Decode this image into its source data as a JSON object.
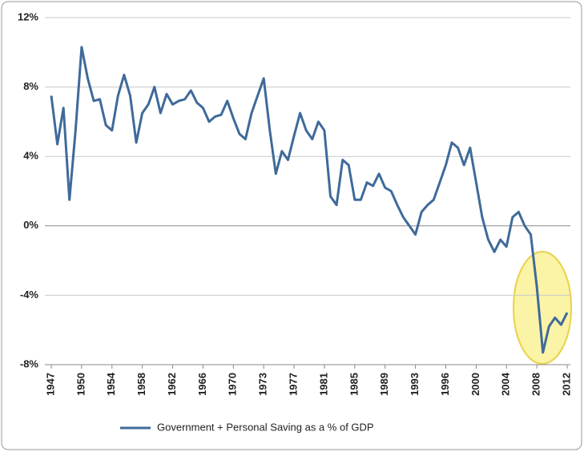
{
  "chart_data": {
    "type": "line",
    "categories": [
      "1947",
      null,
      null,
      null,
      null,
      "1950",
      null,
      null,
      null,
      null,
      "1954",
      null,
      null,
      null,
      null,
      "1958",
      null,
      null,
      null,
      null,
      "1962",
      null,
      null,
      null,
      null,
      "1966",
      null,
      null,
      null,
      null,
      "1970",
      null,
      null,
      null,
      null,
      "1973",
      null,
      null,
      null,
      null,
      "1977",
      null,
      null,
      null,
      null,
      "1981",
      null,
      null,
      null,
      null,
      "1985",
      null,
      null,
      null,
      null,
      "1989",
      null,
      null,
      null,
      null,
      "1993",
      null,
      null,
      null,
      null,
      "1996",
      null,
      null,
      null,
      null,
      "2000",
      null,
      null,
      null,
      null,
      "2004",
      null,
      null,
      null,
      null,
      "2008",
      null,
      null,
      null,
      null,
      "2012"
    ],
    "series": [
      {
        "name": "Government + Personal Saving as a % of GDP",
        "color": "#3f6a9a",
        "values": [
          7.5,
          4.7,
          6.8,
          1.5,
          5.5,
          10.3,
          8.5,
          7.2,
          7.3,
          5.8,
          5.5,
          7.5,
          8.7,
          7.5,
          4.8,
          6.5,
          7.0,
          8.0,
          6.5,
          7.6,
          7.0,
          7.2,
          7.3,
          7.8,
          7.1,
          6.8,
          6.0,
          6.3,
          6.4,
          7.2,
          6.2,
          5.3,
          5.0,
          6.5,
          7.5,
          8.5,
          5.5,
          3.0,
          4.3,
          3.8,
          5.2,
          6.5,
          5.5,
          5.0,
          6.0,
          5.5,
          1.7,
          1.2,
          3.8,
          3.5,
          1.5,
          1.5,
          2.5,
          2.3,
          3.0,
          2.2,
          2.0,
          1.2,
          0.5,
          0.0,
          -0.5,
          0.8,
          1.2,
          1.5,
          2.5,
          3.5,
          4.8,
          4.5,
          3.5,
          4.5,
          2.5,
          0.5,
          -0.8,
          -1.5,
          -0.8,
          -1.2,
          0.5,
          0.8,
          0.0,
          -0.5,
          -3.5,
          -7.3,
          -5.8,
          -5.3,
          -5.7,
          -5.0
        ]
      }
    ],
    "ylim": [
      -8,
      12
    ],
    "yticks": [
      {
        "value": -8,
        "label": "-8%"
      },
      {
        "value": -4,
        "label": "-4%"
      },
      {
        "value": 0,
        "label": "0%"
      },
      {
        "value": 4,
        "label": "4%"
      },
      {
        "value": 8,
        "label": "8%"
      },
      {
        "value": 12,
        "label": "12%"
      }
    ],
    "grid": true,
    "legend": "bottom"
  }
}
